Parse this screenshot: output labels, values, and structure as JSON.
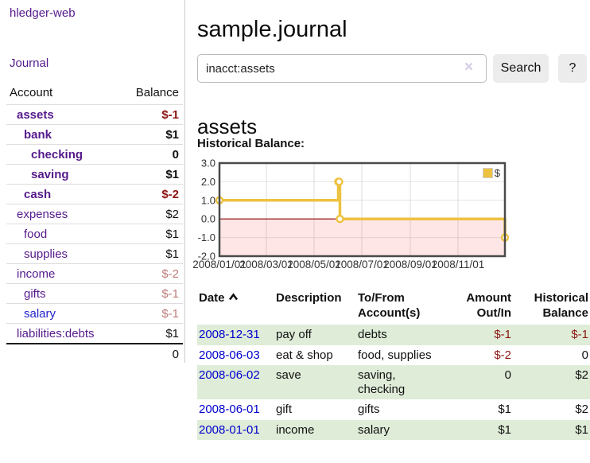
{
  "app": {
    "brand": "hledger-web",
    "nav_journal_label": "Journal"
  },
  "colors": {
    "link_purple": "#551a8b",
    "link_blue": "#0000cc",
    "negative_strong": "#8b1713",
    "negative_soft": "#bd7b7b",
    "row_stripe_green": "#dfecd8",
    "chart_line_gold": "#edc240",
    "chart_zero_line": "#8b0000",
    "chart_negative_fill": "rgba(255,60,60,0.13)"
  },
  "sidebar": {
    "columns": {
      "account": "Account",
      "balance": "Balance"
    },
    "accounts": [
      {
        "name": "assets",
        "indent": 0,
        "bold": true,
        "balance": "$-1",
        "balance_style": "neg-strong"
      },
      {
        "name": "bank",
        "indent": 1,
        "bold": true,
        "balance": "$1",
        "balance_style": "pos"
      },
      {
        "name": "checking",
        "indent": 2,
        "bold": true,
        "balance": "0",
        "balance_style": "pos"
      },
      {
        "name": "saving",
        "indent": 2,
        "bold": true,
        "balance": "$1",
        "balance_style": "pos"
      },
      {
        "name": "cash",
        "indent": 1,
        "bold": true,
        "balance": "$-2",
        "balance_style": "neg-strong"
      },
      {
        "name": "expenses",
        "indent": 0,
        "bold": false,
        "balance": "$2",
        "balance_style": "pos"
      },
      {
        "name": "food",
        "indent": 1,
        "bold": false,
        "balance": "$1",
        "balance_style": "pos"
      },
      {
        "name": "supplies",
        "indent": 1,
        "bold": false,
        "balance": "$1",
        "balance_style": "pos"
      },
      {
        "name": "income",
        "indent": 0,
        "bold": false,
        "balance": "$-2",
        "balance_style": "neg-soft"
      },
      {
        "name": "gifts",
        "indent": 1,
        "bold": false,
        "balance": "$-1",
        "balance_style": "neg-soft"
      },
      {
        "name": "salary",
        "indent": 1,
        "bold": false,
        "balance": "$-1",
        "balance_style": "neg-soft",
        "link_color": "#2222cc"
      },
      {
        "name": "liabilities:debts",
        "indent": 0,
        "bold": false,
        "balance": "$1",
        "balance_style": "pos"
      }
    ],
    "total": "0"
  },
  "header": {
    "title": "sample.journal"
  },
  "search": {
    "value": "inacct:assets",
    "clear_icon": "×",
    "button_label": "Search",
    "help_label": "?"
  },
  "account_page": {
    "heading": "assets",
    "chart_label": "Historical Balance:"
  },
  "chart_data": {
    "type": "line",
    "title": "Historical Balance:",
    "steps": true,
    "x_range": [
      "2008-01-01",
      "2008-12-31"
    ],
    "ylim": [
      -2,
      3
    ],
    "y_ticks": [
      "3.0",
      "2.0",
      "1.0",
      "0.0",
      "-1.0",
      "-2.0"
    ],
    "x_ticks": [
      "2008/01/01",
      "2008/03/01",
      "2008/05/01",
      "2008/07/01",
      "2008/09/01",
      "2008/11/01"
    ],
    "grid": true,
    "negative_region_shaded": true,
    "legend": {
      "label": "$",
      "position": "top-right"
    },
    "series": [
      {
        "name": "$",
        "color": "#edc240",
        "points": [
          [
            "2008-01-01",
            1
          ],
          [
            "2008-06-01",
            2
          ],
          [
            "2008-06-02",
            2
          ],
          [
            "2008-06-03",
            0
          ],
          [
            "2008-12-31",
            -1
          ]
        ]
      }
    ]
  },
  "register": {
    "columns": {
      "date": {
        "label": "Date",
        "sort": "ascending"
      },
      "description": {
        "label": "Description"
      },
      "tofrom": {
        "line1": "To/From",
        "line2": "Account(s)"
      },
      "amount": {
        "line1": "Amount",
        "line2": "Out/In"
      },
      "balance": {
        "line1": "Historical",
        "line2": "Balance"
      }
    },
    "rows": [
      {
        "date": "2008-12-31",
        "description": "pay off",
        "tofrom_lines": [
          "debts"
        ],
        "amount": "$-1",
        "amount_style": "neg",
        "balance": "$-1",
        "balance_style": "neg"
      },
      {
        "date": "2008-06-03",
        "description": "eat & shop",
        "tofrom_lines": [
          "food, supplies"
        ],
        "amount": "$-2",
        "amount_style": "neg",
        "balance": "0",
        "balance_style": "pos"
      },
      {
        "date": "2008-06-02",
        "description": "save",
        "tofrom_lines": [
          "saving,",
          "checking"
        ],
        "amount": "0",
        "amount_style": "pos",
        "balance": "$2",
        "balance_style": "pos"
      },
      {
        "date": "2008-06-01",
        "description": "gift",
        "tofrom_lines": [
          "gifts"
        ],
        "amount": "$1",
        "amount_style": "pos",
        "balance": "$2",
        "balance_style": "pos"
      },
      {
        "date": "2008-01-01",
        "description": "income",
        "tofrom_lines": [
          "salary"
        ],
        "amount": "$1",
        "amount_style": "pos",
        "balance": "$1",
        "balance_style": "pos"
      }
    ]
  }
}
